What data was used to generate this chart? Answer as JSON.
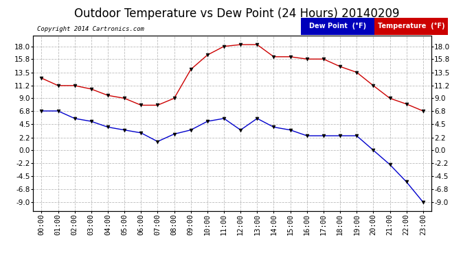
{
  "title": "Outdoor Temperature vs Dew Point (24 Hours) 20140209",
  "copyright_text": "Copyright 2014 Cartronics.com",
  "hours": [
    "00:00",
    "01:00",
    "02:00",
    "03:00",
    "04:00",
    "05:00",
    "06:00",
    "07:00",
    "08:00",
    "09:00",
    "10:00",
    "11:00",
    "12:00",
    "13:00",
    "14:00",
    "15:00",
    "16:00",
    "17:00",
    "18:00",
    "19:00",
    "20:00",
    "21:00",
    "22:00",
    "23:00"
  ],
  "temperature": [
    12.5,
    11.2,
    11.2,
    10.6,
    9.5,
    9.0,
    7.8,
    7.8,
    9.0,
    14.0,
    16.5,
    18.0,
    18.3,
    18.3,
    16.2,
    16.2,
    15.8,
    15.8,
    14.5,
    13.5,
    11.2,
    9.0,
    8.0,
    6.8
  ],
  "dew_point": [
    6.8,
    6.8,
    5.5,
    5.0,
    4.0,
    3.5,
    3.0,
    1.5,
    2.8,
    3.5,
    5.0,
    5.5,
    3.5,
    5.5,
    4.0,
    3.5,
    2.5,
    2.5,
    2.5,
    2.5,
    0.0,
    -2.5,
    -5.5,
    -9.0
  ],
  "temp_color": "#cc0000",
  "dew_color": "#0000cc",
  "bg_color": "#ffffff",
  "plot_bg_color": "#ffffff",
  "grid_color": "#bbbbbb",
  "ylim": [
    -10.5,
    19.8
  ],
  "yticks": [
    -9.0,
    -6.8,
    -4.5,
    -2.2,
    0.0,
    2.2,
    4.5,
    6.8,
    9.0,
    11.2,
    13.5,
    15.8,
    18.0
  ],
  "legend_dew_bg": "#0000bb",
  "legend_temp_bg": "#cc0000",
  "title_fontsize": 12,
  "axis_fontsize": 7.5
}
